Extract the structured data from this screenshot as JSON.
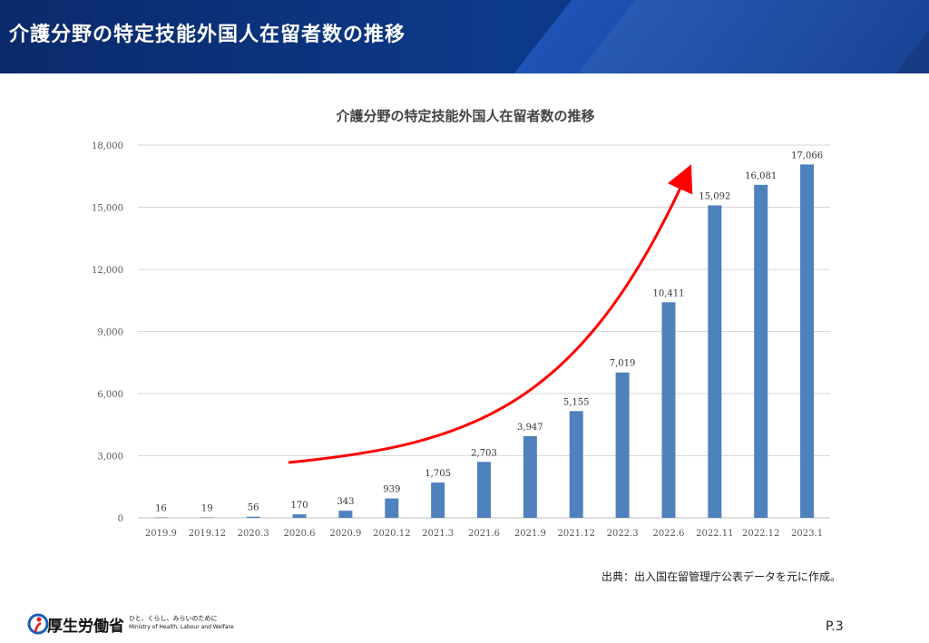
{
  "header": {
    "title": "介護分野の特定技能外国人在留者数の推移"
  },
  "chart_data": {
    "type": "bar",
    "title": "介護分野の特定技能外国人在留者数の推移",
    "categories": [
      "2019.9",
      "2019.12",
      "2020.3",
      "2020.6",
      "2020.9",
      "2020.12",
      "2021.3",
      "2021.6",
      "2021.9",
      "2021.12",
      "2022.3",
      "2022.6",
      "2022.11",
      "2022.12",
      "2023.1"
    ],
    "values": [
      16,
      19,
      56,
      170,
      343,
      939,
      1705,
      2703,
      3947,
      5155,
      7019,
      10411,
      15092,
      16081,
      17066
    ],
    "value_labels": [
      "16",
      "19",
      "56",
      "170",
      "343",
      "939",
      "1,705",
      "2,703",
      "3,947",
      "5,155",
      "7,019",
      "10,411",
      "15,092",
      "16,081",
      "17,066"
    ],
    "ylim": [
      0,
      18000
    ],
    "yticks": [
      0,
      3000,
      6000,
      9000,
      12000,
      15000,
      18000
    ],
    "ytick_labels": [
      "0",
      "3,000",
      "6,000",
      "9,000",
      "12,000",
      "15,000",
      "18,000"
    ],
    "xlabel": "",
    "ylabel": "",
    "grid": true,
    "bar_color": "#4f81bd",
    "annotation": {
      "type": "trend-arrow",
      "color": "#ff0000"
    }
  },
  "source_note": "出典：出入国在留管理庁公表データを元に作成。",
  "footer": {
    "logo_text": "厚生労働省",
    "tagline": "ひと、くらし、みらいのために",
    "tagline_en": "Ministry of Health, Labour and Welfare",
    "page_number": "P.3"
  }
}
